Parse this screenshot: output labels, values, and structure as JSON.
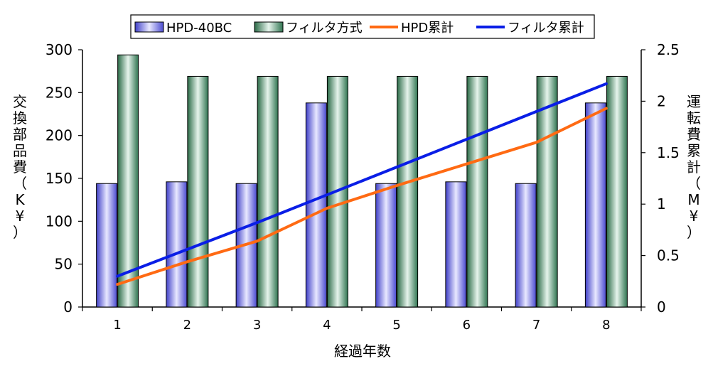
{
  "chart_data": {
    "type": "bar",
    "categories": [
      "1",
      "2",
      "3",
      "4",
      "5",
      "6",
      "7",
      "8"
    ],
    "xlabel": "経過年数",
    "ylabel": "交換部品費（K¥）",
    "y2label": "運転費累計（M¥）",
    "ylim": [
      0,
      300
    ],
    "yticks": [
      "0",
      "50",
      "100",
      "150",
      "200",
      "250",
      "300"
    ],
    "y2lim": [
      0,
      2.5
    ],
    "y2ticks": [
      "0",
      "0.5",
      "1",
      "1.5",
      "2",
      "2.5"
    ],
    "legend_position": "top",
    "series": [
      {
        "name": "HPD-40BC",
        "type": "bar",
        "axis": "left",
        "color": "#8080ff",
        "values": [
          144,
          146,
          144,
          238,
          144,
          146,
          144,
          238
        ]
      },
      {
        "name": "フィルタ方式",
        "type": "bar",
        "axis": "left",
        "color": "#3f8f5f",
        "values": [
          294,
          269,
          269,
          269,
          269,
          269,
          269,
          269
        ]
      },
      {
        "name": "HPD累計",
        "type": "line",
        "axis": "right",
        "color": "#ff6a13",
        "values": [
          0.22,
          0.44,
          0.64,
          0.96,
          1.18,
          1.39,
          1.6,
          1.93
        ]
      },
      {
        "name": "フィルタ累計",
        "type": "line",
        "axis": "right",
        "color": "#0a1ee6",
        "values": [
          0.3,
          0.56,
          0.82,
          1.09,
          1.36,
          1.63,
          1.9,
          2.17
        ]
      }
    ]
  }
}
